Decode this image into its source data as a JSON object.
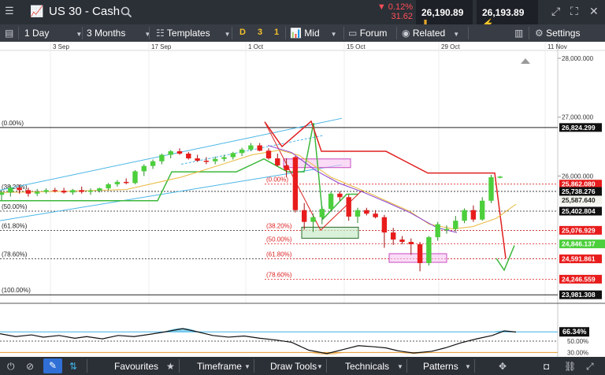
{
  "header": {
    "symbol": "US 30 - Cash",
    "change_pct": "▼ 0.12%",
    "change_abs": "31.62",
    "sell_price": "26,190.89",
    "buy_price": "26,193.89"
  },
  "toolbar": {
    "interval": "1 Day",
    "range": "3 Months",
    "templates": "Templates",
    "period_d": "D",
    "period_3": "3",
    "period_1": "1",
    "price_type": "Mid",
    "forum": "Forum",
    "related": "Related",
    "settings": "Settings"
  },
  "bottombar": {
    "favourites": "Favourites",
    "timeframe": "Timeframe",
    "draw_tools": "Draw Tools",
    "technicals": "Technicals",
    "patterns": "Patterns"
  },
  "chart_data": {
    "type": "candlestick",
    "x_labels": [
      "3 Sep",
      "17 Sep",
      "1 Oct",
      "15 Oct",
      "29 Oct",
      "11 Nov"
    ],
    "y_axis_labels": [
      "28,000.000",
      "27,000.000",
      "26,000.000"
    ],
    "price_labels": [
      {
        "text": "26,824.299",
        "value": 26824.299,
        "style": "black"
      },
      {
        "text": "25,862.080",
        "value": 25862.08,
        "style": "red"
      },
      {
        "text": "25,738.276",
        "value": 25738.276,
        "style": "black"
      },
      {
        "text": "25,587.640",
        "value": 25587.64,
        "style": "pale"
      },
      {
        "text": "25,402.804",
        "value": 25402.804,
        "style": "black"
      },
      {
        "text": "25,076.929",
        "value": 25076.929,
        "style": "red"
      },
      {
        "text": "24,846.137",
        "value": 24846.137,
        "style": "green"
      },
      {
        "text": "24,591.861",
        "value": 24591.861,
        "style": "red"
      },
      {
        "text": "24,246.559",
        "value": 24246.559,
        "style": "red"
      },
      {
        "text": "23,981.308",
        "value": 23981.308,
        "style": "black"
      }
    ],
    "fib_left": [
      "(0.00%)",
      "(38.20%)",
      "(50.00%)",
      "(61.80%)",
      "(78.60%)",
      "(100.00%)"
    ],
    "fib_right": [
      "(0.00%)",
      "(38.20%)",
      "(50.00%)",
      "(61.80%)",
      "(78.60%)"
    ],
    "candles": [
      {
        "o": 25680,
        "h": 25760,
        "l": 25590,
        "c": 25720
      },
      {
        "o": 25720,
        "h": 25840,
        "l": 25650,
        "c": 25800
      },
      {
        "o": 25800,
        "h": 25850,
        "l": 25700,
        "c": 25760
      },
      {
        "o": 25760,
        "h": 25800,
        "l": 25650,
        "c": 25700
      },
      {
        "o": 25700,
        "h": 25780,
        "l": 25660,
        "c": 25730
      },
      {
        "o": 25730,
        "h": 25790,
        "l": 25700,
        "c": 25760
      },
      {
        "o": 25760,
        "h": 25800,
        "l": 25720,
        "c": 25750
      },
      {
        "o": 25750,
        "h": 25800,
        "l": 25700,
        "c": 25720
      },
      {
        "o": 25720,
        "h": 25780,
        "l": 25680,
        "c": 25760
      },
      {
        "o": 25760,
        "h": 25820,
        "l": 25700,
        "c": 25730
      },
      {
        "o": 25730,
        "h": 25790,
        "l": 25680,
        "c": 25750
      },
      {
        "o": 25750,
        "h": 25800,
        "l": 25720,
        "c": 25790
      },
      {
        "o": 25790,
        "h": 25880,
        "l": 25760,
        "c": 25860
      },
      {
        "o": 25860,
        "h": 25930,
        "l": 25820,
        "c": 25900
      },
      {
        "o": 25900,
        "h": 25960,
        "l": 25860,
        "c": 25880
      },
      {
        "o": 25880,
        "h": 26100,
        "l": 25860,
        "c": 26080
      },
      {
        "o": 26080,
        "h": 26200,
        "l": 26000,
        "c": 26170
      },
      {
        "o": 26170,
        "h": 26280,
        "l": 26120,
        "c": 26250
      },
      {
        "o": 26250,
        "h": 26380,
        "l": 26200,
        "c": 26360
      },
      {
        "o": 26360,
        "h": 26440,
        "l": 26300,
        "c": 26420
      },
      {
        "o": 26420,
        "h": 26470,
        "l": 26360,
        "c": 26380
      },
      {
        "o": 26380,
        "h": 26410,
        "l": 26280,
        "c": 26300
      },
      {
        "o": 26300,
        "h": 26360,
        "l": 26240,
        "c": 26260
      },
      {
        "o": 26260,
        "h": 26320,
        "l": 26200,
        "c": 26250
      },
      {
        "o": 26250,
        "h": 26330,
        "l": 26200,
        "c": 26290
      },
      {
        "o": 26290,
        "h": 26360,
        "l": 26250,
        "c": 26320
      },
      {
        "o": 26320,
        "h": 26410,
        "l": 26280,
        "c": 26390
      },
      {
        "o": 26390,
        "h": 26480,
        "l": 26340,
        "c": 26450
      },
      {
        "o": 26450,
        "h": 26560,
        "l": 26420,
        "c": 26520
      },
      {
        "o": 26520,
        "h": 26560,
        "l": 26420,
        "c": 26430
      },
      {
        "o": 26430,
        "h": 26470,
        "l": 26280,
        "c": 26300
      },
      {
        "o": 26300,
        "h": 26380,
        "l": 26160,
        "c": 26180
      },
      {
        "o": 26180,
        "h": 26300,
        "l": 25980,
        "c": 26100
      },
      {
        "o": 26320,
        "h": 26340,
        "l": 25380,
        "c": 25420
      },
      {
        "o": 25420,
        "h": 25540,
        "l": 25090,
        "c": 25220
      },
      {
        "o": 25220,
        "h": 25360,
        "l": 25050,
        "c": 25300
      },
      {
        "o": 25300,
        "h": 25480,
        "l": 25180,
        "c": 25440
      },
      {
        "o": 25440,
        "h": 25740,
        "l": 25400,
        "c": 25700
      },
      {
        "o": 25700,
        "h": 25740,
        "l": 25580,
        "c": 25640
      },
      {
        "o": 25640,
        "h": 25680,
        "l": 25240,
        "c": 25310
      },
      {
        "o": 25310,
        "h": 25460,
        "l": 25200,
        "c": 25420
      },
      {
        "o": 25420,
        "h": 25460,
        "l": 25330,
        "c": 25360
      },
      {
        "o": 25360,
        "h": 25420,
        "l": 25280,
        "c": 25300
      },
      {
        "o": 25300,
        "h": 25340,
        "l": 24780,
        "c": 25040
      },
      {
        "o": 25040,
        "h": 25120,
        "l": 24830,
        "c": 24920
      },
      {
        "o": 24920,
        "h": 24980,
        "l": 24840,
        "c": 24880
      },
      {
        "o": 24880,
        "h": 24940,
        "l": 24660,
        "c": 24840
      },
      {
        "o": 24840,
        "h": 24880,
        "l": 24380,
        "c": 24520
      },
      {
        "o": 24520,
        "h": 24980,
        "l": 24480,
        "c": 24960
      },
      {
        "o": 24960,
        "h": 25220,
        "l": 24900,
        "c": 25180
      },
      {
        "o": 25080,
        "h": 25160,
        "l": 25020,
        "c": 25100
      },
      {
        "o": 25100,
        "h": 25320,
        "l": 25060,
        "c": 25240
      },
      {
        "o": 25240,
        "h": 25450,
        "l": 25200,
        "c": 25420
      },
      {
        "o": 25420,
        "h": 25500,
        "l": 25220,
        "c": 25260
      },
      {
        "o": 25260,
        "h": 25640,
        "l": 25240,
        "c": 25580
      },
      {
        "o": 25580,
        "h": 26020,
        "l": 25540,
        "c": 25980
      },
      {
        "o": 25980,
        "h": 26000,
        "l": 25960,
        "c": 25990
      }
    ],
    "oscillator": {
      "value_label": "66.34%",
      "levels": [
        "50.00%",
        "30.00%"
      ]
    }
  }
}
